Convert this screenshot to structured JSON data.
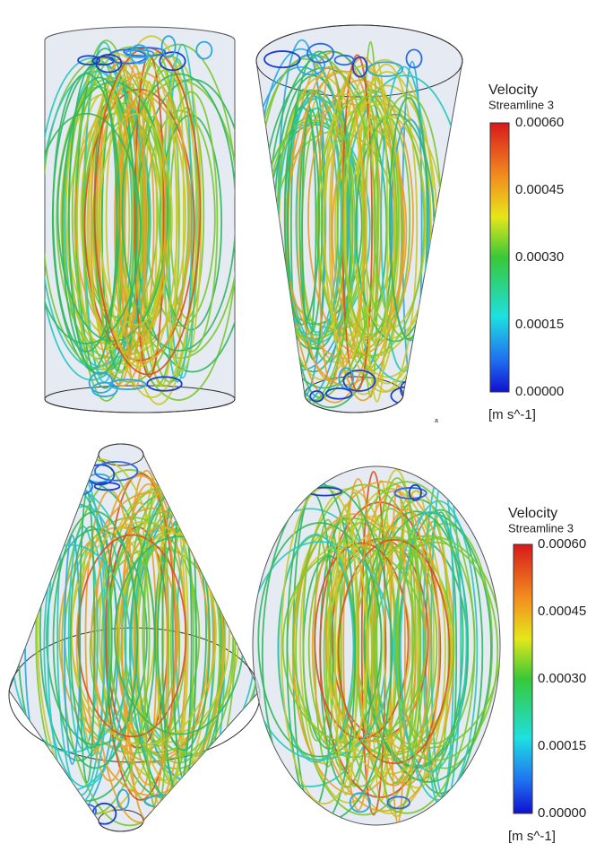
{
  "legends": [
    {
      "title": "Velocity",
      "subtitle": "Streamline 3",
      "ticks": [
        "0.00060",
        "0.00045",
        "0.00030",
        "0.00015",
        "0.00000"
      ],
      "unit": "[m s^-1]"
    },
    {
      "title": "Velocity",
      "subtitle": "Streamline 3",
      "ticks": [
        "0.00060",
        "0.00045",
        "0.00030",
        "0.00015",
        "0.00000"
      ],
      "unit": "[m s^-1]"
    }
  ],
  "stray_label": "a"
}
